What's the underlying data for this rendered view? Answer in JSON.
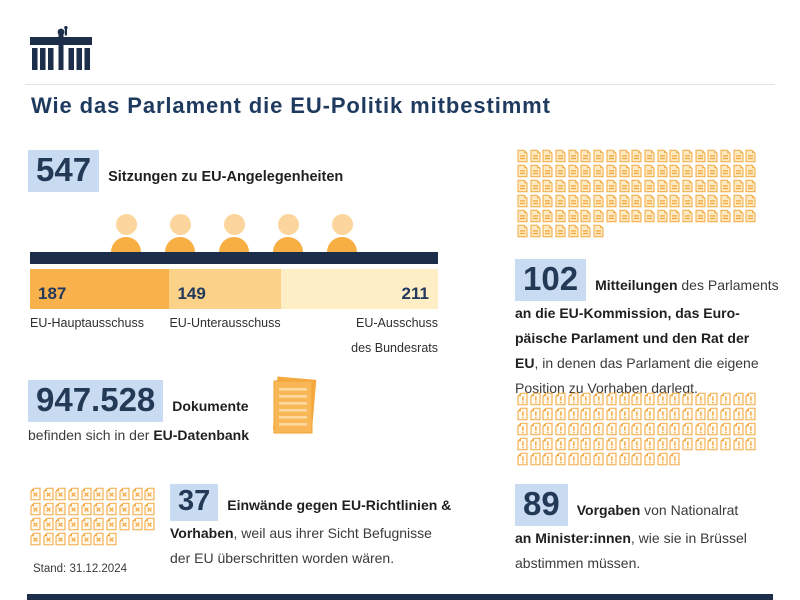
{
  "header": {
    "title": "Wie das Parlament die EU-Politik mitbestimmt",
    "logo_icon": "parliament-building-icon"
  },
  "colors": {
    "navy": "#1c2e4a",
    "title_navy": "#1e3a5f",
    "highlight_blue": "#c9dbf1",
    "orange_dark": "#f9b14c",
    "orange_mid": "#fbd288",
    "orange_pale": "#fdeec6",
    "icon_orange": "#f3aa45"
  },
  "stats": {
    "sitzungen": {
      "value": "547",
      "text": [
        {
          "t": "Sitzungen zu EU-Angelegenheiten",
          "b": true
        }
      ]
    },
    "dokumente": {
      "value": "947.528",
      "icon": "documents-stack-icon",
      "text": [
        {
          "t": "Dokumente",
          "b": true
        },
        {
          "br": true
        },
        {
          "t": "befinden sich in der ",
          "b": false
        },
        {
          "t": "EU-Datenbank",
          "b": true
        }
      ]
    },
    "mitteilungen": {
      "value": "102",
      "grid": {
        "count": 102,
        "per_row": 19,
        "variant": "doc-lines",
        "icon": "document-lines-icon"
      },
      "text": [
        {
          "t": "Mitteilungen",
          "b": true
        },
        {
          "t": " des Parlaments",
          "b": false
        },
        {
          "br": true
        },
        {
          "t": "an die EU-Kommission, das Euro-",
          "b": true
        },
        {
          "br": true
        },
        {
          "t": "päische Parlament und den Rat der",
          "b": true
        },
        {
          "br": true
        },
        {
          "t": "EU",
          "b": true
        },
        {
          "t": ", in denen das Parlament die eigene",
          "b": false
        },
        {
          "br": true
        },
        {
          "t": "Position zu Vorhaben darlegt.",
          "b": false
        }
      ]
    },
    "vorgaben": {
      "value": "89",
      "grid": {
        "count": 89,
        "per_row": 19,
        "variant": "doc-exclaim",
        "icon": "document-exclamation-icon"
      },
      "text": [
        {
          "t": "Vorgaben",
          "b": true
        },
        {
          "t": " von Nationalrat",
          "b": false
        },
        {
          "br": true
        },
        {
          "t": "an Minister:innen",
          "b": true
        },
        {
          "t": ", wie sie in Brüssel",
          "b": false
        },
        {
          "br": true
        },
        {
          "t": "abstimmen müssen.",
          "b": false
        }
      ]
    },
    "einwaende": {
      "value": "37",
      "grid": {
        "count": 37,
        "per_row": 10,
        "variant": "doc-x",
        "icon": "document-x-icon"
      },
      "text": [
        {
          "t": "Einwände gegen EU-Richtlinien &",
          "b": true
        },
        {
          "br": true
        },
        {
          "t": "Vorhaben",
          "b": true
        },
        {
          "t": ", weil aus ihrer Sicht Befugnisse",
          "b": false
        },
        {
          "br": true
        },
        {
          "t": "der EU überschritten worden wären.",
          "b": false
        }
      ]
    }
  },
  "chart_data": [
    {
      "type": "bar",
      "variant": "horizontal-stacked-pictogram",
      "title": "547 Sitzungen zu EU-Angelegenheiten",
      "categories": [
        "EU-Hauptausschuss",
        "EU-Unterausschuss",
        "EU-Ausschuss des Bundesrats"
      ],
      "values": [
        187,
        149,
        211
      ],
      "total": 547,
      "colors": [
        "#f9b14c",
        "#fbd288",
        "#fdeec6"
      ],
      "labels_display": {
        "c1": "EU-Hauptausschuss",
        "c2": "EU-Unterausschuss",
        "c3_line1": "EU-Ausschuss",
        "c3_line2": "des Bundesrats"
      },
      "legend_position": "below",
      "grid": false
    },
    {
      "type": "pictogram",
      "icon": "document-lines",
      "value": 102,
      "per_row": 19,
      "label": "Mitteilungen des Parlaments an die EU-Kommission, das Europäische Parlament und den Rat der EU"
    },
    {
      "type": "pictogram",
      "icon": "document-exclamation",
      "value": 89,
      "per_row": 19,
      "label": "Vorgaben von Nationalrat an Minister:innen"
    },
    {
      "type": "pictogram",
      "icon": "document-x",
      "value": 37,
      "per_row": 10,
      "label": "Einwände gegen EU-Richtlinien & Vorhaben"
    }
  ],
  "footer": {
    "stand": "Stand: 31.12.2024"
  }
}
